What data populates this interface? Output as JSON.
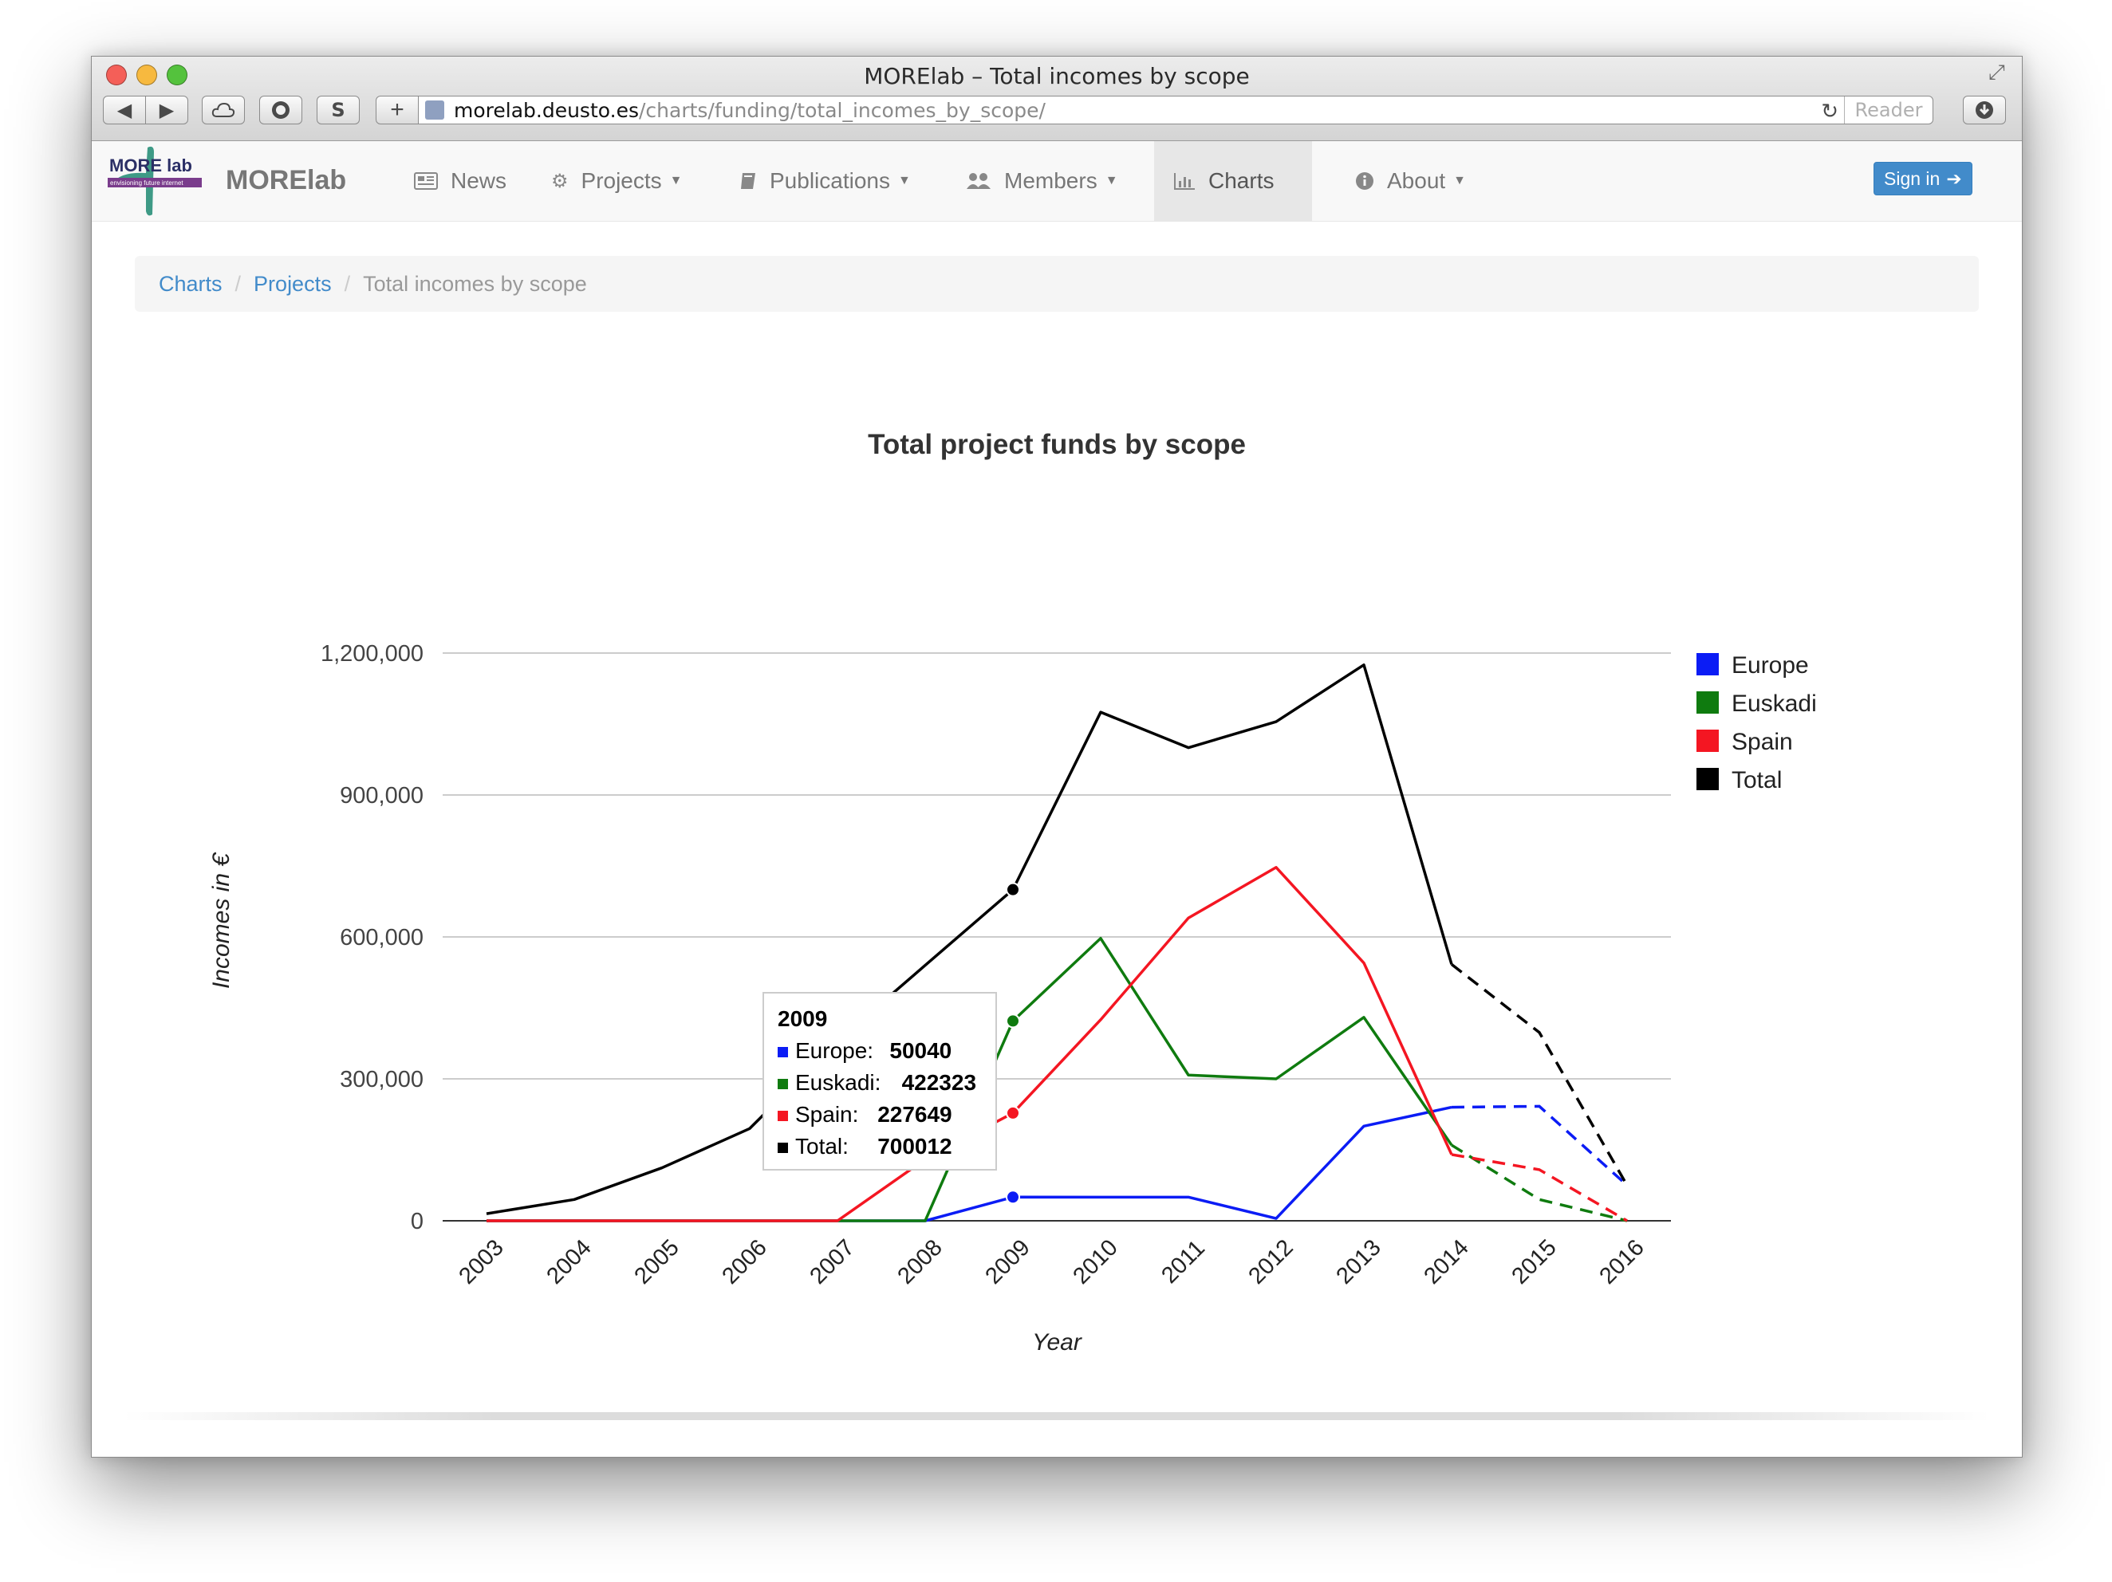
{
  "window": {
    "title": "MORElab – Total incomes by scope",
    "url_host": "morelab.deusto.es",
    "url_path": "/charts/funding/total_incomes_by_scope/",
    "reader_label": "Reader",
    "s_label": "S"
  },
  "navbar": {
    "logo_text": "MORE lab",
    "logo_tagline": "envisioning future internet",
    "brand": "MORElab",
    "items": [
      {
        "label": "News",
        "icon": "newspaper-icon"
      },
      {
        "label": "Projects",
        "icon": "gears-icon"
      },
      {
        "label": "Publications",
        "icon": "book-icon"
      },
      {
        "label": "Members",
        "icon": "group-icon"
      },
      {
        "label": "Charts",
        "icon": "bar-chart-icon"
      },
      {
        "label": "About",
        "icon": "info-icon"
      }
    ],
    "signin": "Sign in"
  },
  "breadcrumb": {
    "items": [
      "Charts",
      "Projects"
    ],
    "active": "Total incomes by scope"
  },
  "chart_data": {
    "type": "line",
    "title": "Total project funds by scope",
    "xlabel": "Year",
    "ylabel": "Incomes in €",
    "categories": [
      "2003",
      "2004",
      "2005",
      "2006",
      "2007",
      "2008",
      "2009",
      "2010",
      "2011",
      "2012",
      "2013",
      "2014",
      "2015",
      "2016"
    ],
    "ylim": [
      0,
      1200000
    ],
    "yticks": [
      0,
      300000,
      600000,
      900000,
      1200000
    ],
    "ytick_labels": [
      "0",
      "300,000",
      "600,000",
      "900,000",
      "1,200,000"
    ],
    "grid": true,
    "legend_position": "right",
    "dashed_from_index": 11,
    "series": [
      {
        "name": "Europe",
        "color": "#0b1cf5",
        "values": [
          0,
          0,
          0,
          0,
          0,
          0,
          50040,
          50000,
          50000,
          5000,
          200000,
          240000,
          242000,
          75000
        ]
      },
      {
        "name": "Euskadi",
        "color": "#0f7b0f",
        "values": [
          0,
          0,
          0,
          0,
          0,
          0,
          422323,
          597000,
          308000,
          300000,
          430000,
          160000,
          45000,
          0
        ]
      },
      {
        "name": "Spain",
        "color": "#f41622",
        "values": [
          0,
          0,
          0,
          0,
          0,
          130000,
          227649,
          425000,
          640000,
          747000,
          545000,
          140000,
          108000,
          0
        ]
      },
      {
        "name": "Total",
        "color": "#000000",
        "values": [
          15000,
          45000,
          112000,
          195000,
          380000,
          540000,
          700012,
          1075000,
          1000000,
          1055000,
          1175000,
          542000,
          398000,
          75000
        ]
      }
    ],
    "tooltip": {
      "title": "2009",
      "rows": [
        {
          "label": "Europe:",
          "value": "50040",
          "color": "#0b1cf5"
        },
        {
          "label": "Euskadi:",
          "value": "422323",
          "color": "#0f7b0f"
        },
        {
          "label": "Spain:",
          "value": "227649",
          "color": "#f41622"
        },
        {
          "label": "Total:",
          "value": "700012",
          "color": "#000000"
        }
      ]
    }
  }
}
